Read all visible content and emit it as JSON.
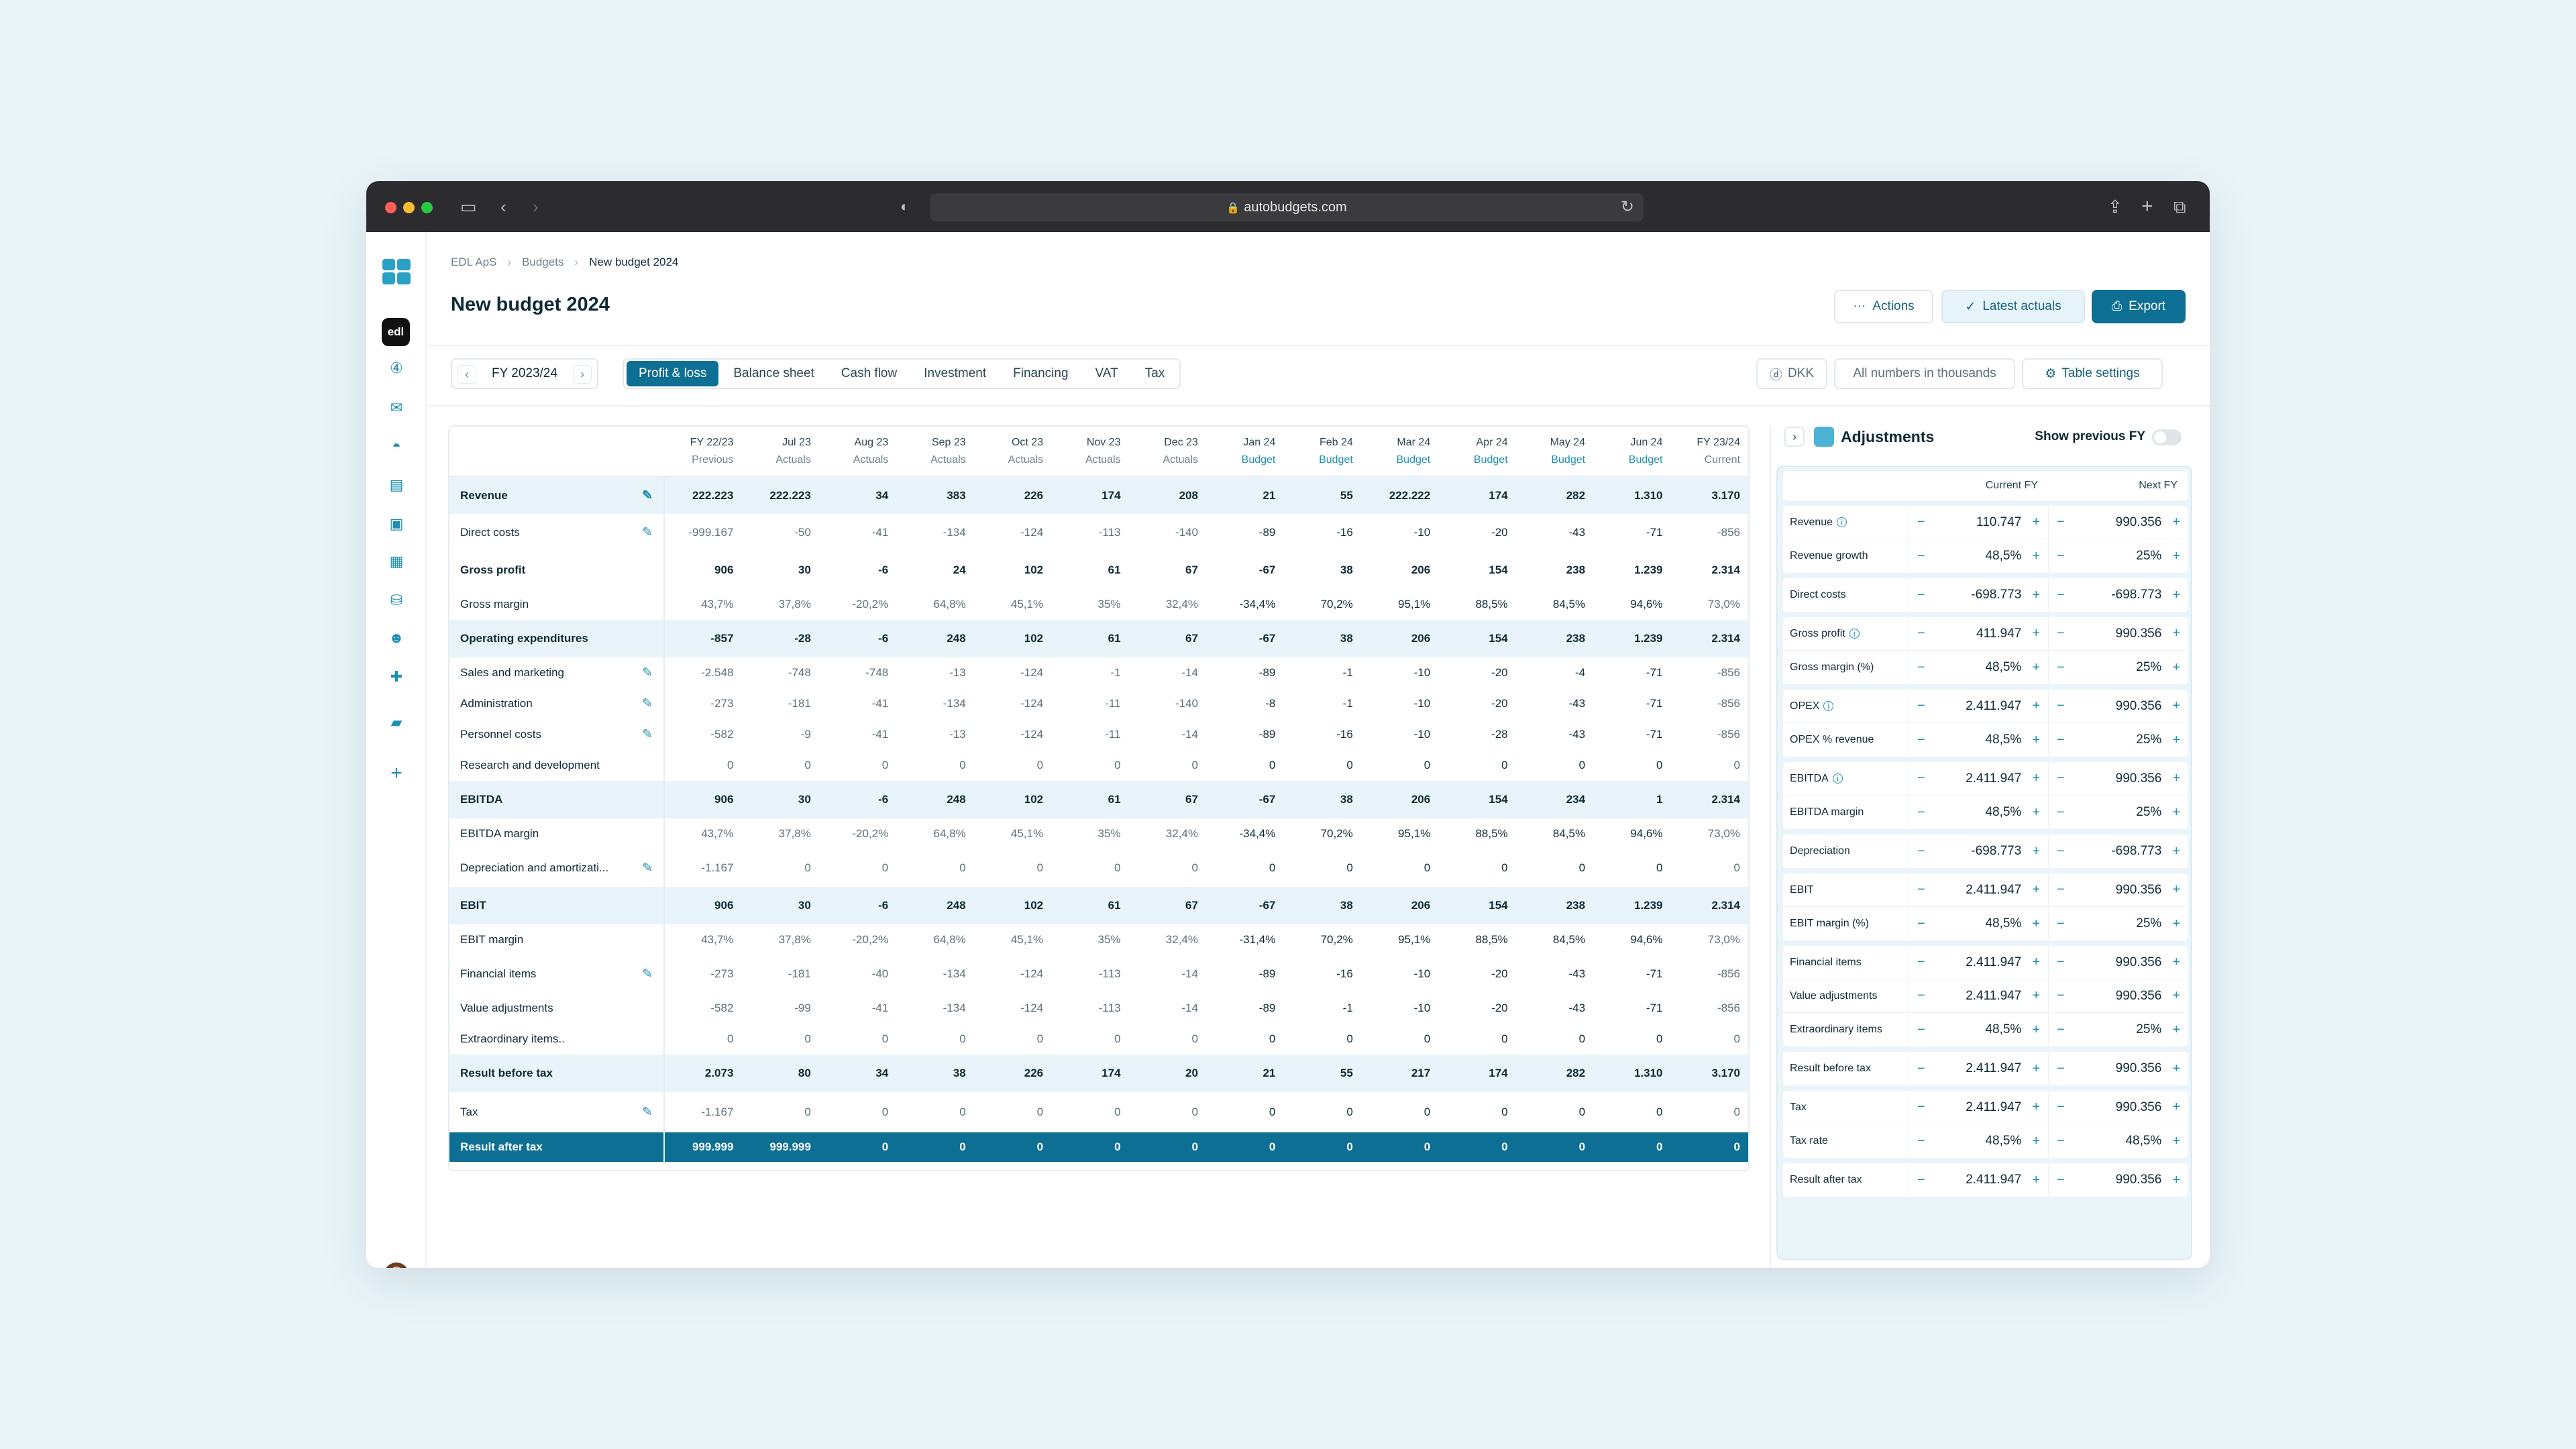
{
  "browser": {
    "url": "autobudgets.com"
  },
  "breadcrumb": [
    "EDL ApS",
    "Budgets",
    "New budget 2024"
  ],
  "page": {
    "title": "New budget 2024"
  },
  "header_actions": {
    "actions": "Actions",
    "latest_actuals": "Latest actuals",
    "export": "Export"
  },
  "sidebar": {
    "org_badge": "edl",
    "icons": [
      "dashboard-icon",
      "clock-icon",
      "mail-icon",
      "budget-icon",
      "document-icon",
      "notes-icon",
      "calculator-icon",
      "database-icon",
      "users-icon",
      "puzzle-icon",
      "briefcase-icon",
      "add-icon"
    ]
  },
  "toolbar": {
    "fiscal_year": "FY 2023/24",
    "tabs": [
      "Profit & loss",
      "Balance sheet",
      "Cash flow",
      "Investment",
      "Financing",
      "VAT",
      "Tax"
    ],
    "active_tab": "Profit & loss",
    "currency": "DKK",
    "units_note": "All numbers in thousands",
    "table_settings": "Table settings"
  },
  "table": {
    "columns": [
      {
        "label": "FY 22/23",
        "sub": "Previous",
        "budget": false
      },
      {
        "label": "Jul 23",
        "sub": "Actuals",
        "budget": false
      },
      {
        "label": "Aug 23",
        "sub": "Actuals",
        "budget": false
      },
      {
        "label": "Sep 23",
        "sub": "Actuals",
        "budget": false
      },
      {
        "label": "Oct 23",
        "sub": "Actuals",
        "budget": false
      },
      {
        "label": "Nov 23",
        "sub": "Actuals",
        "budget": false
      },
      {
        "label": "Dec 23",
        "sub": "Actuals",
        "budget": false
      },
      {
        "label": "Jan 24",
        "sub": "Budget",
        "budget": true
      },
      {
        "label": "Feb 24",
        "sub": "Budget",
        "budget": true
      },
      {
        "label": "Mar 24",
        "sub": "Budget",
        "budget": true
      },
      {
        "label": "Apr 24",
        "sub": "Budget",
        "budget": true
      },
      {
        "label": "May 24",
        "sub": "Budget",
        "budget": true
      },
      {
        "label": "Jun 24",
        "sub": "Budget",
        "budget": true
      },
      {
        "label": "FY 23/24",
        "sub": "Current",
        "budget": false
      }
    ],
    "rows": [
      {
        "label": "Revenue",
        "bold": true,
        "hl": true,
        "edit": true,
        "h": 56,
        "values": [
          "222.223",
          "222.223",
          "34",
          "383",
          "226",
          "174",
          "208",
          "21",
          "55",
          "222.222",
          "174",
          "282",
          "1.310",
          "3.170"
        ]
      },
      {
        "label": "Direct costs",
        "edit": true,
        "h": 56,
        "values": [
          "-999.167",
          "-50",
          "-41",
          "-134",
          "-124",
          "-113",
          "-140",
          "-89",
          "-16",
          "-10",
          "-20",
          "-43",
          "-71",
          "-856"
        ]
      },
      {
        "label": "Gross profit",
        "bold": true,
        "h": 56,
        "values": [
          "906",
          "30",
          "-6",
          "24",
          "102",
          "61",
          "67",
          "-67",
          "38",
          "206",
          "154",
          "238",
          "1.239",
          "2.314"
        ]
      },
      {
        "label": "Gross margin",
        "h": 46,
        "values": [
          "43,7%",
          "37,8%",
          "-20,2%",
          "64,8%",
          "45,1%",
          "35%",
          "32,4%",
          "-34,4%",
          "70,2%",
          "95,1%",
          "88,5%",
          "84,5%",
          "94,6%",
          "73,0%"
        ]
      },
      {
        "label": "Operating expenditures",
        "bold": true,
        "hl": true,
        "h": 56,
        "values": [
          "-857",
          "-28",
          "-6",
          "248",
          "102",
          "61",
          "67",
          "-67",
          "38",
          "206",
          "154",
          "238",
          "1.239",
          "2.314"
        ]
      },
      {
        "label": "Sales and marketing",
        "edit": true,
        "h": 46,
        "values": [
          "-2.548",
          "-748",
          "-748",
          "-13",
          "-124",
          "-1",
          "-14",
          "-89",
          "-1",
          "-10",
          "-20",
          "-4",
          "-71",
          "-856"
        ]
      },
      {
        "label": "Administration",
        "edit": true,
        "h": 46,
        "values": [
          "-273",
          "-181",
          "-41",
          "-134",
          "-124",
          "-11",
          "-140",
          "-8",
          "-1",
          "-10",
          "-20",
          "-43",
          "-71",
          "-856"
        ]
      },
      {
        "label": "Personnel costs",
        "edit": true,
        "h": 46,
        "values": [
          "-582",
          "-9",
          "-41",
          "-13",
          "-124",
          "-11",
          "-14",
          "-89",
          "-16",
          "-10",
          "-28",
          "-43",
          "-71",
          "-856"
        ]
      },
      {
        "label": "Research and development",
        "h": 46,
        "values": [
          "0",
          "0",
          "0",
          "0",
          "0",
          "0",
          "0",
          "0",
          "0",
          "0",
          "0",
          "0",
          "0",
          "0"
        ]
      },
      {
        "label": "EBITDA",
        "bold": true,
        "hl": true,
        "h": 56,
        "values": [
          "906",
          "30",
          "-6",
          "248",
          "102",
          "61",
          "67",
          "-67",
          "38",
          "206",
          "154",
          "234",
          "1",
          "2.314"
        ]
      },
      {
        "label": "EBITDA margin",
        "h": 46,
        "values": [
          "43,7%",
          "37,8%",
          "-20,2%",
          "64,8%",
          "45,1%",
          "35%",
          "32,4%",
          "-34,4%",
          "70,2%",
          "95,1%",
          "88,5%",
          "84,5%",
          "94,6%",
          "73,0%"
        ]
      },
      {
        "label": "Depreciation and amortizati...",
        "edit": true,
        "h": 56,
        "values": [
          "-1.167",
          "0",
          "0",
          "0",
          "0",
          "0",
          "0",
          "0",
          "0",
          "0",
          "0",
          "0",
          "0",
          "0"
        ]
      },
      {
        "label": "EBIT",
        "bold": true,
        "hl": true,
        "h": 56,
        "values": [
          "906",
          "30",
          "-6",
          "248",
          "102",
          "61",
          "67",
          "-67",
          "38",
          "206",
          "154",
          "238",
          "1.239",
          "2.314"
        ]
      },
      {
        "label": "EBIT margin",
        "h": 46,
        "values": [
          "43,7%",
          "37,8%",
          "-20,2%",
          "64,8%",
          "45,1%",
          "35%",
          "32,4%",
          "-31,4%",
          "70,2%",
          "95,1%",
          "88,5%",
          "84,5%",
          "94,6%",
          "73,0%"
        ]
      },
      {
        "label": "Financial items",
        "edit": true,
        "h": 56,
        "values": [
          "-273",
          "-181",
          "-40",
          "-134",
          "-124",
          "-113",
          "-14",
          "-89",
          "-16",
          "-10",
          "-20",
          "-43",
          "-71",
          "-856"
        ]
      },
      {
        "label": "Value adjustments",
        "h": 46,
        "values": [
          "-582",
          "-99",
          "-41",
          "-134",
          "-124",
          "-113",
          "-14",
          "-89",
          "-1",
          "-10",
          "-20",
          "-43",
          "-71",
          "-856"
        ]
      },
      {
        "label": "Extraordinary items..",
        "h": 46,
        "values": [
          "0",
          "0",
          "0",
          "0",
          "0",
          "0",
          "0",
          "0",
          "0",
          "0",
          "0",
          "0",
          "0",
          "0"
        ]
      },
      {
        "label": "Result before tax",
        "bold": true,
        "hl": true,
        "h": 56,
        "values": [
          "2.073",
          "80",
          "34",
          "38",
          "226",
          "174",
          "20",
          "21",
          "55",
          "217",
          "174",
          "282",
          "1.310",
          "3.170"
        ]
      },
      {
        "label": "Tax",
        "edit": true,
        "h": 60,
        "values": [
          "-1.167",
          "0",
          "0",
          "0",
          "0",
          "0",
          "0",
          "0",
          "0",
          "0",
          "0",
          "0",
          "0",
          "0"
        ]
      },
      {
        "label": "Result after tax",
        "total": true,
        "h": 44,
        "values": [
          "999.999",
          "999.999",
          "0",
          "0",
          "0",
          "0",
          "0",
          "0",
          "0",
          "0",
          "0",
          "0",
          "0",
          "0"
        ]
      }
    ]
  },
  "adjustments": {
    "title": "Adjustments",
    "show_previous": "Show previous FY",
    "col_current": "Current FY",
    "col_next": "Next FY",
    "groups": [
      [
        {
          "label": "Revenue",
          "info": true,
          "cur": "110.747",
          "next": "990.356"
        },
        {
          "label": "Revenue growth",
          "cur": "48,5%",
          "next": "25%"
        }
      ],
      [
        {
          "label": "Direct costs",
          "cur": "-698.773",
          "next": "-698.773"
        }
      ],
      [
        {
          "label": "Gross profit",
          "info": true,
          "cur": "411.947",
          "next": "990.356"
        },
        {
          "label": "Gross margin (%)",
          "cur": "48,5%",
          "next": "25%"
        }
      ],
      [
        {
          "label": "OPEX",
          "info": true,
          "cur": "2.411.947",
          "next": "990.356"
        },
        {
          "label": "OPEX % revenue",
          "cur": "48,5%",
          "next": "25%"
        }
      ],
      [
        {
          "label": "EBITDA",
          "info": true,
          "cur": "2.411.947",
          "next": "990.356"
        },
        {
          "label": "EBITDA margin",
          "cur": "48,5%",
          "next": "25%"
        }
      ],
      [
        {
          "label": "Depreciation",
          "cur": "-698.773",
          "next": "-698.773"
        }
      ],
      [
        {
          "label": "EBIT",
          "cur": "2.411.947",
          "next": "990.356"
        },
        {
          "label": "EBIT margin (%)",
          "cur": "48,5%",
          "next": "25%"
        }
      ],
      [
        {
          "label": "Financial items",
          "cur": "2.411.947",
          "next": "990.356"
        },
        {
          "label": "Value adjustments",
          "cur": "2.411.947",
          "next": "990.356"
        },
        {
          "label": "Extraordinary items",
          "cur": "48,5%",
          "next": "25%"
        }
      ],
      [
        {
          "label": "Result before tax",
          "cur": "2.411.947",
          "next": "990.356"
        }
      ],
      [
        {
          "label": "Tax",
          "cur": "2.411.947",
          "next": "990.356"
        },
        {
          "label": "Tax rate",
          "cur": "48,5%",
          "next": "48,5%"
        }
      ],
      [
        {
          "label": "Result after tax",
          "cur": "2.411.947",
          "next": "990.356"
        }
      ]
    ]
  }
}
